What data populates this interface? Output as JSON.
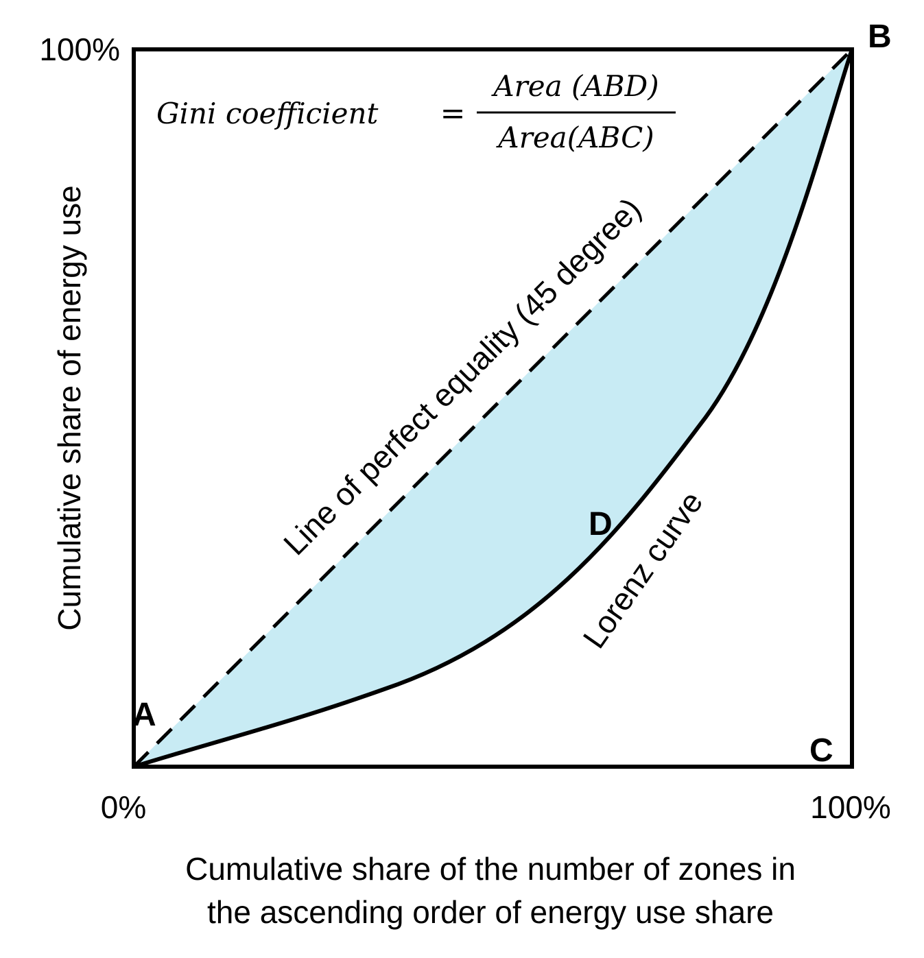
{
  "axes": {
    "x_label_line1": "Cumulative share of the number of zones in",
    "x_label_line2": "the ascending order of energy use share",
    "y_label": "Cumulative share of energy use",
    "x_min_tick": "0%",
    "x_max_tick": "100%",
    "y_max_tick": "100%"
  },
  "points": {
    "A": "A",
    "B": "B",
    "C": "C",
    "D": "D"
  },
  "labels": {
    "equality_line": "Line of perfect equality (45 degree)",
    "lorenz_curve": "Lorenz curve"
  },
  "formula": {
    "lhs": "Gini coefficient",
    "equals": "=",
    "numerator": "Area (ABD)",
    "denominator": "Area(ABC)"
  },
  "colors": {
    "shaded_area": "#c8ebf4",
    "lines": "#000000"
  }
}
